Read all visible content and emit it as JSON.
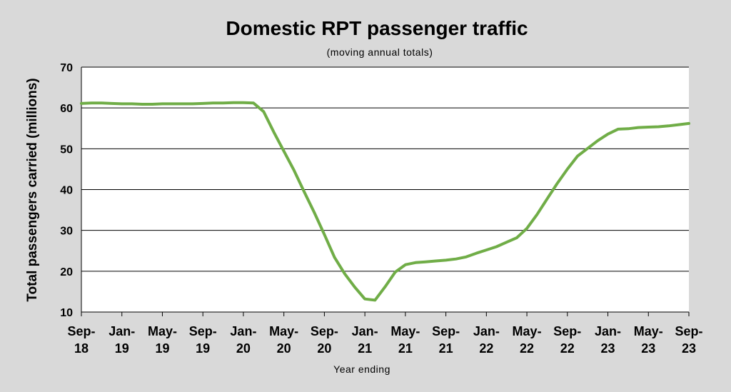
{
  "chart_data": {
    "type": "line",
    "title": "Domestic RPT passenger traffic",
    "subtitle": "(moving annual totals)",
    "xlabel": "Year ending",
    "ylabel": "Total passengers carried (millions)",
    "ylim": [
      10,
      70
    ],
    "yticks": [
      "10",
      "20",
      "30",
      "40",
      "50",
      "60",
      "70"
    ],
    "grid": true,
    "legend": "none",
    "line_color": "#70ad47",
    "plot_background": "#ffffff",
    "page_background": "#d9d9d9",
    "x_tick_labels": [
      [
        "Sep-",
        "18"
      ],
      [
        "Jan-",
        "19"
      ],
      [
        "May-",
        "19"
      ],
      [
        "Sep-",
        "19"
      ],
      [
        "Jan-",
        "20"
      ],
      [
        "May-",
        "20"
      ],
      [
        "Sep-",
        "20"
      ],
      [
        "Jan-",
        "21"
      ],
      [
        "May-",
        "21"
      ],
      [
        "Sep-",
        "21"
      ],
      [
        "Jan-",
        "22"
      ],
      [
        "May-",
        "22"
      ],
      [
        "Sep-",
        "22"
      ],
      [
        "Jan-",
        "23"
      ],
      [
        "May-",
        "23"
      ],
      [
        "Sep-",
        "23"
      ]
    ],
    "x": [
      "Sep-18",
      "Oct-18",
      "Nov-18",
      "Dec-18",
      "Jan-19",
      "Feb-19",
      "Mar-19",
      "Apr-19",
      "May-19",
      "Jun-19",
      "Jul-19",
      "Aug-19",
      "Sep-19",
      "Oct-19",
      "Nov-19",
      "Dec-19",
      "Jan-20",
      "Feb-20",
      "Mar-20",
      "Apr-20",
      "May-20",
      "Jun-20",
      "Jul-20",
      "Aug-20",
      "Sep-20",
      "Oct-20",
      "Nov-20",
      "Dec-20",
      "Jan-21",
      "Feb-21",
      "Mar-21",
      "Apr-21",
      "May-21",
      "Jun-21",
      "Jul-21",
      "Aug-21",
      "Sep-21",
      "Oct-21",
      "Nov-21",
      "Dec-21",
      "Jan-22",
      "Feb-22",
      "Mar-22",
      "Apr-22",
      "May-22",
      "Jun-22",
      "Jul-22",
      "Aug-22",
      "Sep-22",
      "Oct-22",
      "Nov-22",
      "Dec-22",
      "Jan-23",
      "Feb-23",
      "Mar-23",
      "Apr-23",
      "May-23",
      "Jun-23",
      "Jul-23",
      "Aug-23",
      "Sep-23"
    ],
    "series": [
      {
        "values": [
          61.1,
          61.2,
          61.2,
          61.1,
          61.0,
          61.0,
          60.9,
          60.9,
          61.0,
          61.0,
          61.0,
          61.0,
          61.1,
          61.2,
          61.2,
          61.3,
          61.3,
          61.2,
          59.1,
          54.1,
          49.4,
          44.7,
          39.5,
          34.4,
          29.0,
          23.4,
          19.4,
          16.1,
          13.2,
          12.9,
          16.2,
          19.8,
          21.6,
          22.1,
          22.3,
          22.5,
          22.7,
          23.0,
          23.5,
          24.4,
          25.2,
          26.0,
          27.1,
          28.2,
          30.5,
          33.9,
          37.7,
          41.5,
          45.0,
          48.2,
          50.1,
          52.0,
          53.6,
          54.8,
          54.9,
          55.2,
          55.3,
          55.4,
          55.6,
          55.9,
          56.2
        ]
      }
    ]
  }
}
